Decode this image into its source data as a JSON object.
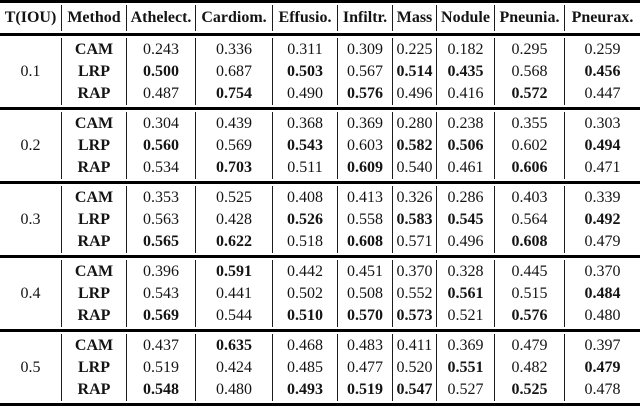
{
  "page": {
    "background_color": "#ffffff",
    "text_color": "#141414",
    "rule_color": "#000000"
  },
  "table": {
    "headers": [
      "T(IOU)",
      "Method",
      "Athelect.",
      "Cardiom.",
      "Effusio.",
      "Infiltr.",
      "Mass",
      "Nodule",
      "Pneunia.",
      "Pneurax."
    ],
    "blocks": [
      {
        "tiou": "0.1",
        "rows": [
          {
            "method": "CAM",
            "values": [
              "0.243",
              "0.336",
              "0.311",
              "0.309",
              "0.225",
              "0.182",
              "0.295",
              "0.259"
            ],
            "bold": [
              false,
              false,
              false,
              false,
              false,
              false,
              false,
              false
            ]
          },
          {
            "method": "LRP",
            "values": [
              "0.500",
              "0.687",
              "0.503",
              "0.567",
              "0.514",
              "0.435",
              "0.568",
              "0.456"
            ],
            "bold": [
              true,
              false,
              true,
              false,
              true,
              true,
              false,
              true
            ]
          },
          {
            "method": "RAP",
            "values": [
              "0.487",
              "0.754",
              "0.490",
              "0.576",
              "0.496",
              "0.416",
              "0.572",
              "0.447"
            ],
            "bold": [
              false,
              true,
              false,
              true,
              false,
              false,
              true,
              false
            ]
          }
        ]
      },
      {
        "tiou": "0.2",
        "rows": [
          {
            "method": "CAM",
            "values": [
              "0.304",
              "0.439",
              "0.368",
              "0.369",
              "0.280",
              "0.238",
              "0.355",
              "0.303"
            ],
            "bold": [
              false,
              false,
              false,
              false,
              false,
              false,
              false,
              false
            ]
          },
          {
            "method": "LRP",
            "values": [
              "0.560",
              "0.569",
              "0.543",
              "0.603",
              "0.582",
              "0.506",
              "0.602",
              "0.494"
            ],
            "bold": [
              true,
              false,
              true,
              false,
              true,
              true,
              false,
              true
            ]
          },
          {
            "method": "RAP",
            "values": [
              "0.534",
              "0.703",
              "0.511",
              "0.609",
              "0.540",
              "0.461",
              "0.606",
              "0.471"
            ],
            "bold": [
              false,
              true,
              false,
              true,
              false,
              false,
              true,
              false
            ]
          }
        ]
      },
      {
        "tiou": "0.3",
        "rows": [
          {
            "method": "CAM",
            "values": [
              "0.353",
              "0.525",
              "0.408",
              "0.413",
              "0.326",
              "0.286",
              "0.403",
              "0.339"
            ],
            "bold": [
              false,
              false,
              false,
              false,
              false,
              false,
              false,
              false
            ]
          },
          {
            "method": "LRP",
            "values": [
              "0.563",
              "0.428",
              "0.526",
              "0.558",
              "0.583",
              "0.545",
              "0.564",
              "0.492"
            ],
            "bold": [
              false,
              false,
              true,
              false,
              true,
              true,
              false,
              true
            ]
          },
          {
            "method": "RAP",
            "values": [
              "0.565",
              "0.622",
              "0.518",
              "0.608",
              "0.571",
              "0.496",
              "0.608",
              "0.479"
            ],
            "bold": [
              true,
              true,
              false,
              true,
              false,
              false,
              true,
              false
            ]
          }
        ]
      },
      {
        "tiou": "0.4",
        "rows": [
          {
            "method": "CAM",
            "values": [
              "0.396",
              "0.591",
              "0.442",
              "0.451",
              "0.370",
              "0.328",
              "0.445",
              "0.370"
            ],
            "bold": [
              false,
              true,
              false,
              false,
              false,
              false,
              false,
              false
            ]
          },
          {
            "method": "LRP",
            "values": [
              "0.543",
              "0.441",
              "0.502",
              "0.508",
              "0.552",
              "0.561",
              "0.515",
              "0.484"
            ],
            "bold": [
              false,
              false,
              false,
              false,
              false,
              true,
              false,
              true
            ]
          },
          {
            "method": "RAP",
            "values": [
              "0.569",
              "0.544",
              "0.510",
              "0.570",
              "0.573",
              "0.521",
              "0.576",
              "0.480"
            ],
            "bold": [
              true,
              false,
              true,
              true,
              true,
              false,
              true,
              false
            ]
          }
        ]
      },
      {
        "tiou": "0.5",
        "rows": [
          {
            "method": "CAM",
            "values": [
              "0.437",
              "0.635",
              "0.468",
              "0.483",
              "0.411",
              "0.369",
              "0.479",
              "0.397"
            ],
            "bold": [
              false,
              true,
              false,
              false,
              false,
              false,
              false,
              false
            ]
          },
          {
            "method": "LRP",
            "values": [
              "0.519",
              "0.424",
              "0.485",
              "0.477",
              "0.520",
              "0.551",
              "0.482",
              "0.479"
            ],
            "bold": [
              false,
              false,
              false,
              false,
              false,
              true,
              false,
              true
            ]
          },
          {
            "method": "RAP",
            "values": [
              "0.548",
              "0.480",
              "0.493",
              "0.519",
              "0.547",
              "0.527",
              "0.525",
              "0.478"
            ],
            "bold": [
              true,
              false,
              true,
              true,
              true,
              false,
              true,
              false
            ]
          }
        ]
      }
    ]
  }
}
